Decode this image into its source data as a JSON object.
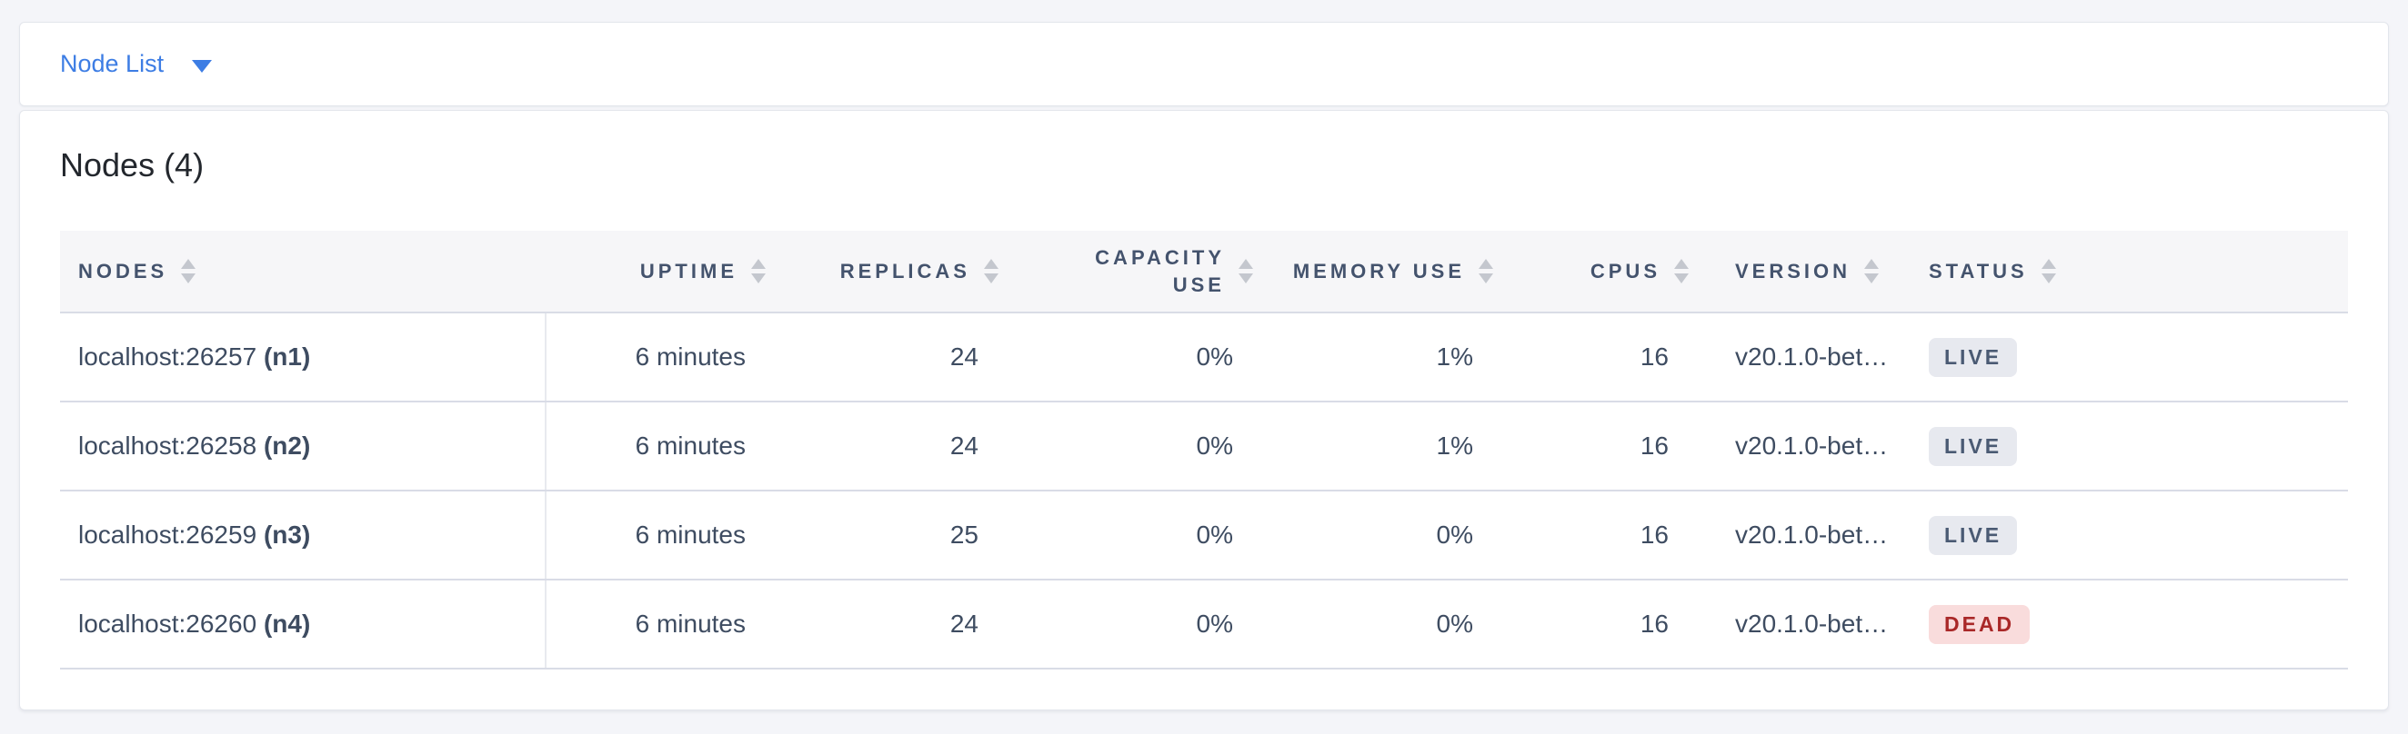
{
  "selector": {
    "label": "Node List",
    "caret_icon": "chevron-down-icon"
  },
  "main": {
    "title": "Nodes (4)"
  },
  "table": {
    "columns": [
      {
        "label": "NODES",
        "align": "left"
      },
      {
        "label": "UPTIME",
        "align": "right"
      },
      {
        "label": "REPLICAS",
        "align": "right"
      },
      {
        "label": "CAPACITY USE",
        "align": "right"
      },
      {
        "label": "MEMORY USE",
        "align": "right"
      },
      {
        "label": "CPUS",
        "align": "right"
      },
      {
        "label": "VERSION",
        "align": "left"
      },
      {
        "label": "STATUS",
        "align": "left"
      }
    ],
    "sort_icon": "sort-arrows-icon",
    "rows": [
      {
        "address": "localhost:26257",
        "node_id": "(n1)",
        "uptime": "6 minutes",
        "replicas": "24",
        "capacity_use": "0%",
        "memory_use": "1%",
        "cpus": "16",
        "version": "v20.1.0-bet…",
        "status": "LIVE"
      },
      {
        "address": "localhost:26258",
        "node_id": "(n2)",
        "uptime": "6 minutes",
        "replicas": "24",
        "capacity_use": "0%",
        "memory_use": "1%",
        "cpus": "16",
        "version": "v20.1.0-bet…",
        "status": "LIVE"
      },
      {
        "address": "localhost:26259",
        "node_id": "(n3)",
        "uptime": "6 minutes",
        "replicas": "25",
        "capacity_use": "0%",
        "memory_use": "0%",
        "cpus": "16",
        "version": "v20.1.0-bet…",
        "status": "LIVE"
      },
      {
        "address": "localhost:26260",
        "node_id": "(n4)",
        "uptime": "6 minutes",
        "replicas": "24",
        "capacity_use": "0%",
        "memory_use": "0%",
        "cpus": "16",
        "version": "v20.1.0-bet…",
        "status": "DEAD"
      }
    ]
  },
  "colors": {
    "link_blue": "#3d7de4",
    "header_text": "#44536d",
    "cell_text": "#3e4c61",
    "live_badge_bg": "#e7e9ef",
    "live_badge_text": "#4a5a73",
    "dead_badge_bg": "#f9dcdc",
    "dead_badge_text": "#a92828"
  }
}
